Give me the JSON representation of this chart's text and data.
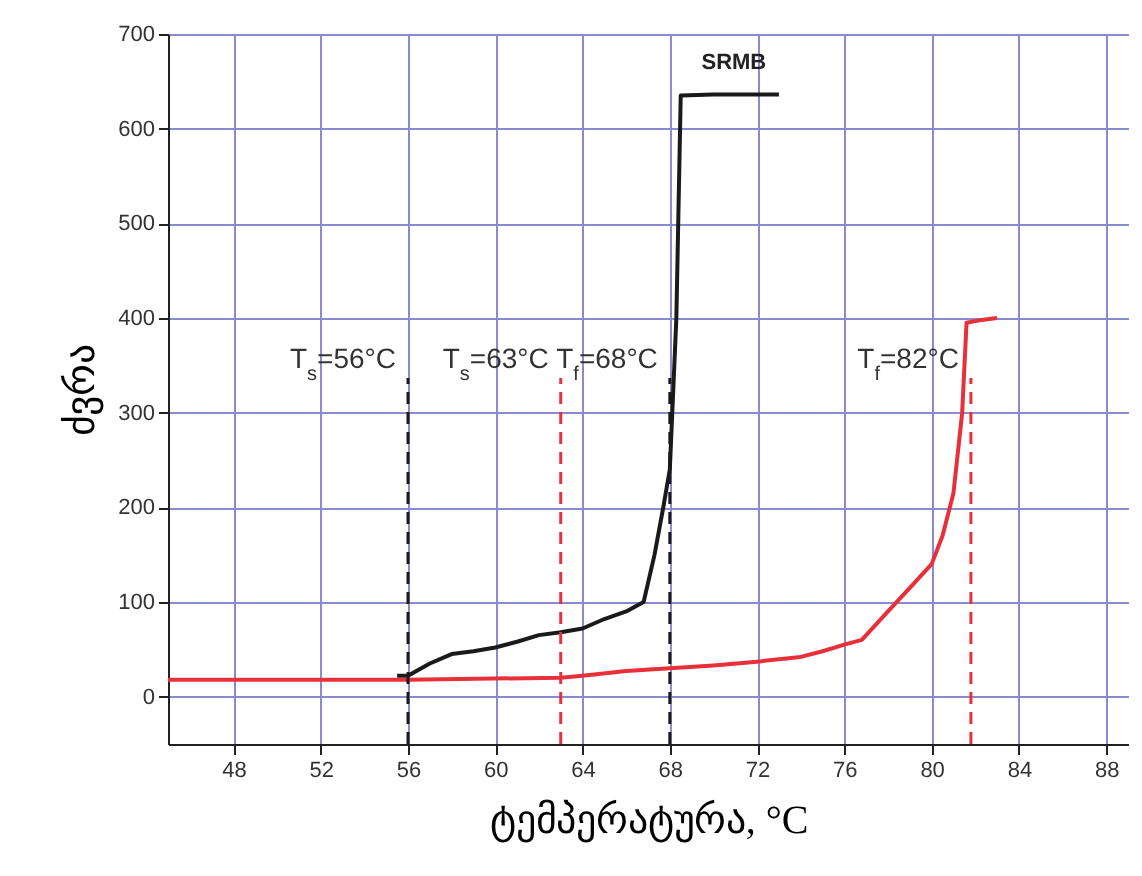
{
  "chart_data": {
    "type": "line",
    "xlabel": "ტემპერატურა, °C",
    "ylabel": "ძვრა",
    "xlim": [
      45,
      89
    ],
    "ylim": [
      -50,
      700
    ],
    "xticks": [
      48,
      52,
      56,
      60,
      64,
      68,
      72,
      76,
      80,
      84,
      88
    ],
    "yticks": [
      0,
      100,
      200,
      300,
      400,
      500,
      600,
      700
    ],
    "grid": true,
    "line_style": "solid",
    "marker": "none",
    "series": [
      {
        "name": "SRMB",
        "color": "#1a1a1a",
        "x": [
          55.5,
          56,
          57,
          58,
          59,
          60,
          61,
          62,
          63,
          64,
          65,
          66,
          66.8,
          67.3,
          67.7,
          68,
          68.3,
          68.5,
          70,
          73
        ],
        "values": [
          22,
          22,
          35,
          45,
          48,
          52,
          58,
          65,
          68,
          72,
          82,
          90,
          100,
          150,
          200,
          240,
          400,
          635,
          636,
          636
        ]
      },
      {
        "color": "#e8303a",
        "x": [
          45,
          56,
          63,
          64,
          66,
          68,
          70,
          72,
          74,
          75,
          76,
          76.8,
          78,
          79,
          80,
          80.5,
          81,
          81.4,
          81.6,
          82.3,
          83
        ],
        "values": [
          18,
          18,
          20,
          22,
          27,
          30,
          33,
          37,
          42,
          48,
          55,
          60,
          90,
          115,
          140,
          170,
          215,
          300,
          395,
          398,
          400
        ]
      }
    ],
    "ref_lines": [
      {
        "axis": "x",
        "value": 56,
        "color": "#1a1a1a",
        "line_style": "dashed",
        "label": "T$_{s}$=56°C"
      },
      {
        "axis": "x",
        "value": 63,
        "color": "#e8303a",
        "line_style": "dashed",
        "label": "T$_{s}$=63°C"
      },
      {
        "axis": "x",
        "value": 68,
        "color": "#1a1a1a",
        "line_style": "dashed",
        "label": "T$_{f}$=68°C"
      },
      {
        "axis": "x",
        "value": 81.8,
        "color": "#e8303a",
        "line_style": "dashed",
        "label": "T$_{f}$=82°C"
      }
    ]
  }
}
